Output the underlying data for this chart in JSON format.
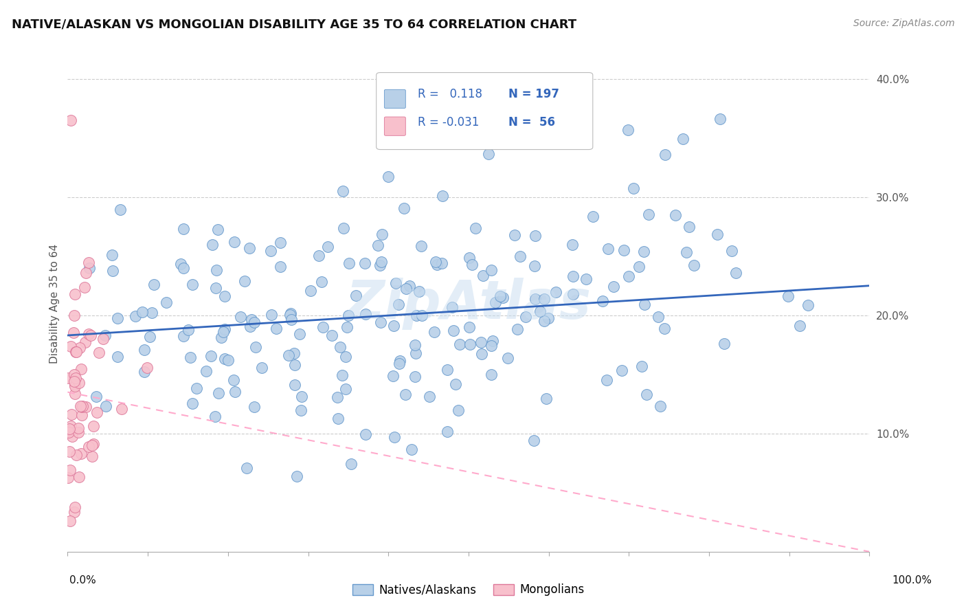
{
  "title": "NATIVE/ALASKAN VS MONGOLIAN DISABILITY AGE 35 TO 64 CORRELATION CHART",
  "source": "Source: ZipAtlas.com",
  "ylabel": "Disability Age 35 to 64",
  "watermark": "ZipAtlas",
  "blue_R": 0.118,
  "blue_N": 197,
  "pink_R": -0.031,
  "pink_N": 56,
  "blue_dot_color": "#b8d0e8",
  "blue_edge_color": "#6699cc",
  "pink_dot_color": "#f8c0cc",
  "pink_edge_color": "#dd7799",
  "blue_line_color": "#3366bb",
  "pink_line_color": "#ffaacc",
  "legend_blue_label": "Natives/Alaskans",
  "legend_pink_label": "Mongolians",
  "xlim": [
    0,
    1
  ],
  "ylim": [
    0,
    0.42
  ],
  "ytick_vals": [
    0.1,
    0.2,
    0.3,
    0.4
  ],
  "ytick_labels": [
    "10.0%",
    "20.0%",
    "30.0%",
    "40.0%"
  ],
  "grid_color": "#cccccc",
  "background_color": "#ffffff",
  "info_text_color": "#3366bb",
  "blue_trend_x0": 0.0,
  "blue_trend_y0": 0.183,
  "blue_trend_x1": 1.0,
  "blue_trend_y1": 0.225,
  "pink_trend_x0": 0.0,
  "pink_trend_y0": 0.135,
  "pink_trend_x1": 1.0,
  "pink_trend_y1": 0.0
}
